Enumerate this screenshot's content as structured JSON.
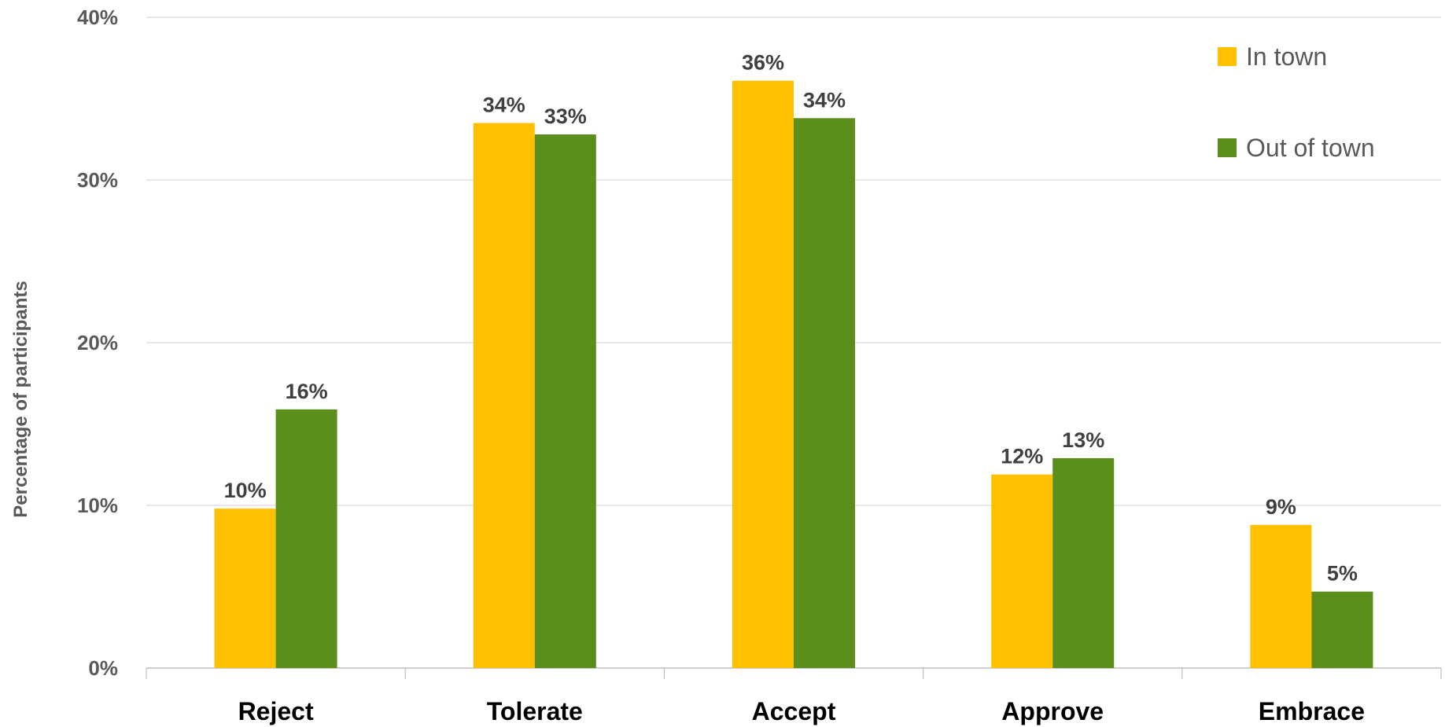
{
  "chart_data": {
    "type": "bar",
    "title": "",
    "xlabel": "",
    "ylabel": "Percentage of participants",
    "ylim": [
      0,
      40
    ],
    "yticks": [
      "0%",
      "10%",
      "20%",
      "30%",
      "40%"
    ],
    "categories": [
      "Reject",
      "Tolerate",
      "Accept",
      "Approve",
      "Embrace"
    ],
    "series": [
      {
        "name": "In town",
        "color": "#FFC000",
        "values": [
          9.8,
          33.5,
          36.1,
          11.9,
          8.8
        ],
        "labels": [
          "10%",
          "34%",
          "36%",
          "12%",
          "9%"
        ]
      },
      {
        "name": "Out of town",
        "color": "#5B8E1A",
        "values": [
          15.9,
          32.8,
          33.8,
          12.9,
          4.7
        ],
        "labels": [
          "16%",
          "33%",
          "34%",
          "13%",
          "5%"
        ]
      }
    ],
    "grid": true,
    "legend_position": "top-right"
  }
}
